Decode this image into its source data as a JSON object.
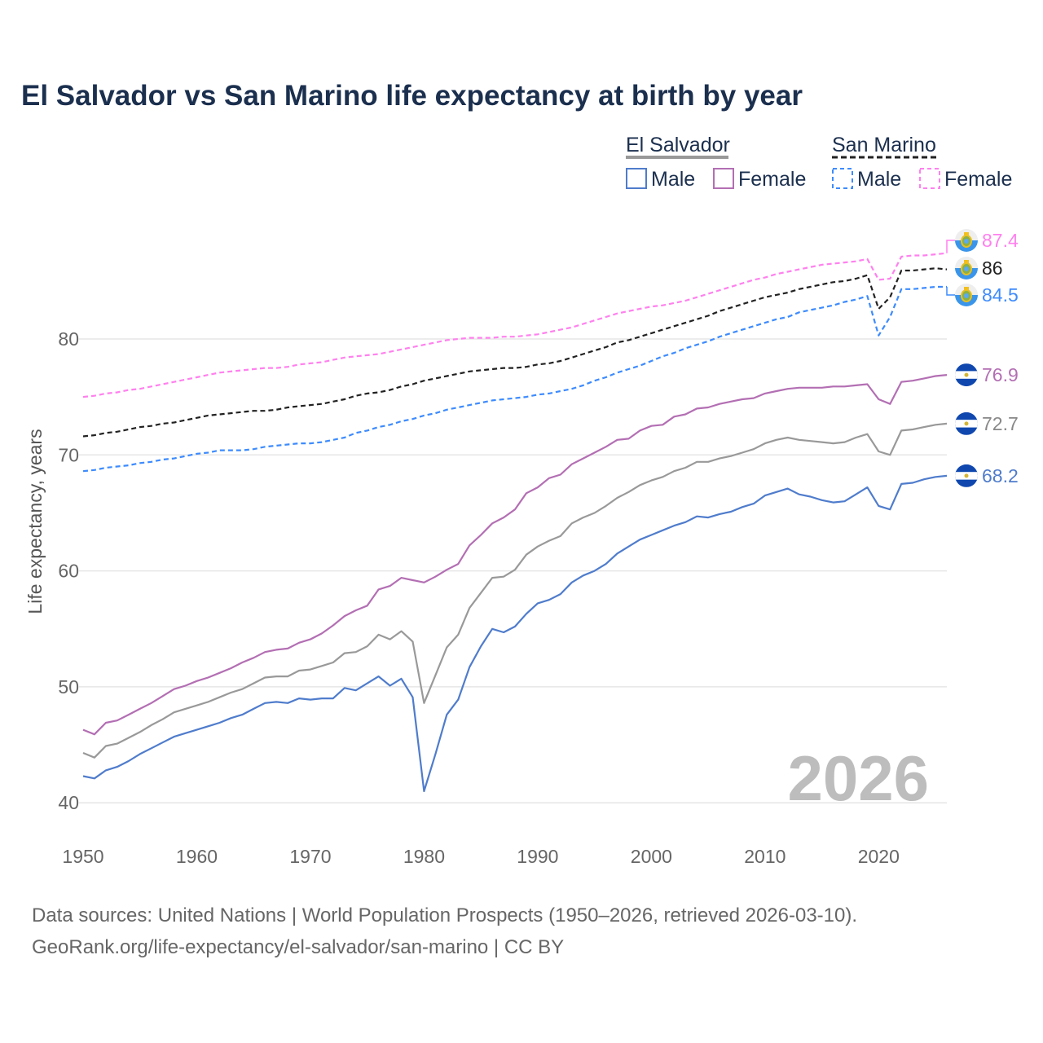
{
  "chart_data": {
    "type": "line",
    "title": "El Salvador vs San Marino life expectancy at birth by year",
    "xlabel": "",
    "ylabel": "Life expectancy, years",
    "xlim": [
      1950,
      2026
    ],
    "ylim": [
      40,
      90
    ],
    "x_ticks": [
      "1950",
      "1960",
      "1970",
      "1980",
      "1990",
      "2000",
      "2010",
      "2020"
    ],
    "y_ticks": [
      "40",
      "50",
      "60",
      "70",
      "80"
    ],
    "grid": true,
    "legend_placement": "top-right",
    "legend": {
      "groups": [
        {
          "name": "El Salvador",
          "items": [
            "Male",
            "Female"
          ]
        },
        {
          "name": "San Marino",
          "items": [
            "Male",
            "Female"
          ]
        }
      ]
    },
    "watermark_year": "2026",
    "x_start": 1950,
    "series": [
      {
        "name": "El Salvador Total",
        "country": "El Salvador",
        "sex": "Total",
        "color": "#999999",
        "dashed": false,
        "end_label": "72.7",
        "values": [
          44.3,
          43.9,
          44.9,
          45.1,
          45.6,
          46.1,
          46.7,
          47.2,
          47.8,
          48.1,
          48.4,
          48.7,
          49.1,
          49.5,
          49.8,
          50.3,
          50.8,
          50.9,
          50.9,
          51.4,
          51.5,
          51.8,
          52.1,
          52.9,
          53.0,
          53.5,
          54.5,
          54.1,
          54.8,
          53.9,
          48.6,
          51.0,
          53.4,
          54.5,
          56.8,
          58.1,
          59.4,
          59.5,
          60.1,
          61.4,
          62.1,
          62.6,
          63.0,
          64.1,
          64.6,
          65.0,
          65.6,
          66.3,
          66.8,
          67.4,
          67.8,
          68.1,
          68.6,
          68.9,
          69.4,
          69.4,
          69.7,
          69.9,
          70.2,
          70.5,
          71.0,
          71.3,
          71.5,
          71.3,
          71.2,
          71.1,
          71.0,
          71.1,
          71.5,
          71.8,
          70.3,
          70.0,
          72.1,
          72.2,
          72.4,
          72.6,
          72.7
        ]
      },
      {
        "name": "El Salvador Male",
        "country": "El Salvador",
        "sex": "Male",
        "color": "#4f7ccc",
        "dashed": false,
        "end_label": "68.2",
        "values": [
          42.3,
          42.1,
          42.8,
          43.1,
          43.6,
          44.2,
          44.7,
          45.2,
          45.7,
          46.0,
          46.3,
          46.6,
          46.9,
          47.3,
          47.6,
          48.1,
          48.6,
          48.7,
          48.6,
          49.0,
          48.9,
          49.0,
          49.0,
          49.9,
          49.7,
          50.3,
          50.9,
          50.1,
          50.7,
          49.1,
          41.0,
          44.2,
          47.6,
          48.9,
          51.7,
          53.5,
          55.0,
          54.7,
          55.2,
          56.3,
          57.2,
          57.5,
          58.0,
          59.0,
          59.6,
          60.0,
          60.6,
          61.5,
          62.1,
          62.7,
          63.1,
          63.5,
          63.9,
          64.2,
          64.7,
          64.6,
          64.9,
          65.1,
          65.5,
          65.8,
          66.5,
          66.8,
          67.1,
          66.6,
          66.4,
          66.1,
          65.9,
          66.0,
          66.6,
          67.2,
          65.6,
          65.3,
          67.5,
          67.6,
          67.9,
          68.1,
          68.2
        ]
      },
      {
        "name": "El Salvador Female",
        "country": "El Salvador",
        "sex": "Female",
        "color": "#b36fb3",
        "dashed": false,
        "end_label": "76.9",
        "values": [
          46.3,
          45.9,
          46.9,
          47.1,
          47.6,
          48.1,
          48.6,
          49.2,
          49.8,
          50.1,
          50.5,
          50.8,
          51.2,
          51.6,
          52.1,
          52.5,
          53.0,
          53.2,
          53.3,
          53.8,
          54.1,
          54.6,
          55.3,
          56.1,
          56.6,
          57.0,
          58.4,
          58.7,
          59.4,
          59.2,
          59.0,
          59.5,
          60.1,
          60.6,
          62.2,
          63.1,
          64.1,
          64.6,
          65.3,
          66.7,
          67.2,
          68.0,
          68.3,
          69.2,
          69.7,
          70.2,
          70.7,
          71.3,
          71.4,
          72.1,
          72.5,
          72.6,
          73.3,
          73.5,
          74.0,
          74.1,
          74.4,
          74.6,
          74.8,
          74.9,
          75.3,
          75.5,
          75.7,
          75.8,
          75.8,
          75.8,
          75.9,
          75.9,
          76.0,
          76.1,
          74.8,
          74.4,
          76.3,
          76.4,
          76.6,
          76.8,
          76.9
        ]
      },
      {
        "name": "San Marino Total",
        "country": "San Marino",
        "sex": "Total",
        "color": "#222222",
        "dashed": true,
        "end_label": "86",
        "values": [
          71.6,
          71.7,
          71.9,
          72.0,
          72.2,
          72.4,
          72.5,
          72.7,
          72.8,
          73.0,
          73.2,
          73.4,
          73.5,
          73.6,
          73.7,
          73.8,
          73.8,
          73.9,
          74.1,
          74.2,
          74.3,
          74.4,
          74.6,
          74.8,
          75.1,
          75.3,
          75.4,
          75.6,
          75.9,
          76.1,
          76.4,
          76.6,
          76.8,
          77.0,
          77.2,
          77.3,
          77.4,
          77.5,
          77.5,
          77.6,
          77.8,
          77.9,
          78.1,
          78.4,
          78.7,
          79.0,
          79.3,
          79.7,
          79.9,
          80.2,
          80.5,
          80.8,
          81.1,
          81.4,
          81.7,
          82.0,
          82.4,
          82.7,
          83.0,
          83.3,
          83.6,
          83.8,
          84.0,
          84.3,
          84.5,
          84.7,
          84.9,
          85.0,
          85.2,
          85.5,
          82.6,
          83.6,
          85.9,
          85.9,
          86.0,
          86.1,
          86.0
        ]
      },
      {
        "name": "San Marino Male",
        "country": "San Marino",
        "sex": "Male",
        "color": "#3d8bfd",
        "dashed": true,
        "end_label": "84.5",
        "values": [
          68.6,
          68.7,
          68.9,
          69.0,
          69.1,
          69.3,
          69.4,
          69.6,
          69.7,
          69.9,
          70.1,
          70.2,
          70.4,
          70.4,
          70.4,
          70.5,
          70.7,
          70.8,
          70.9,
          71.0,
          71.0,
          71.1,
          71.3,
          71.5,
          71.9,
          72.1,
          72.4,
          72.6,
          72.9,
          73.1,
          73.4,
          73.6,
          73.9,
          74.1,
          74.3,
          74.5,
          74.7,
          74.8,
          74.9,
          75.0,
          75.2,
          75.3,
          75.5,
          75.7,
          76.0,
          76.4,
          76.7,
          77.1,
          77.4,
          77.7,
          78.1,
          78.5,
          78.8,
          79.2,
          79.5,
          79.8,
          80.2,
          80.5,
          80.8,
          81.1,
          81.4,
          81.7,
          81.9,
          82.3,
          82.5,
          82.7,
          82.9,
          83.2,
          83.4,
          83.7,
          80.3,
          81.9,
          84.3,
          84.3,
          84.4,
          84.5,
          84.5
        ]
      },
      {
        "name": "San Marino Female",
        "country": "San Marino",
        "sex": "Female",
        "color": "#ff80ee",
        "dashed": true,
        "end_label": "87.4",
        "values": [
          75.0,
          75.1,
          75.3,
          75.4,
          75.6,
          75.7,
          75.9,
          76.1,
          76.3,
          76.5,
          76.7,
          76.9,
          77.1,
          77.2,
          77.3,
          77.4,
          77.5,
          77.5,
          77.6,
          77.8,
          77.9,
          78.0,
          78.2,
          78.4,
          78.5,
          78.6,
          78.7,
          78.9,
          79.1,
          79.3,
          79.5,
          79.7,
          79.9,
          80.0,
          80.1,
          80.1,
          80.1,
          80.2,
          80.2,
          80.3,
          80.4,
          80.6,
          80.8,
          81.0,
          81.3,
          81.6,
          81.9,
          82.2,
          82.4,
          82.6,
          82.8,
          82.9,
          83.1,
          83.3,
          83.6,
          83.9,
          84.2,
          84.5,
          84.8,
          85.1,
          85.3,
          85.6,
          85.8,
          86.0,
          86.2,
          86.4,
          86.5,
          86.6,
          86.7,
          86.9,
          85.1,
          85.2,
          87.1,
          87.2,
          87.2,
          87.3,
          87.4
        ]
      }
    ]
  },
  "footer": {
    "line1": "Data sources: United Nations | World Population Prospects (1950–2026, retrieved 2026-03-10).",
    "line2": "GeoRank.org/life-expectancy/el-salvador/san-marino | CC BY"
  }
}
